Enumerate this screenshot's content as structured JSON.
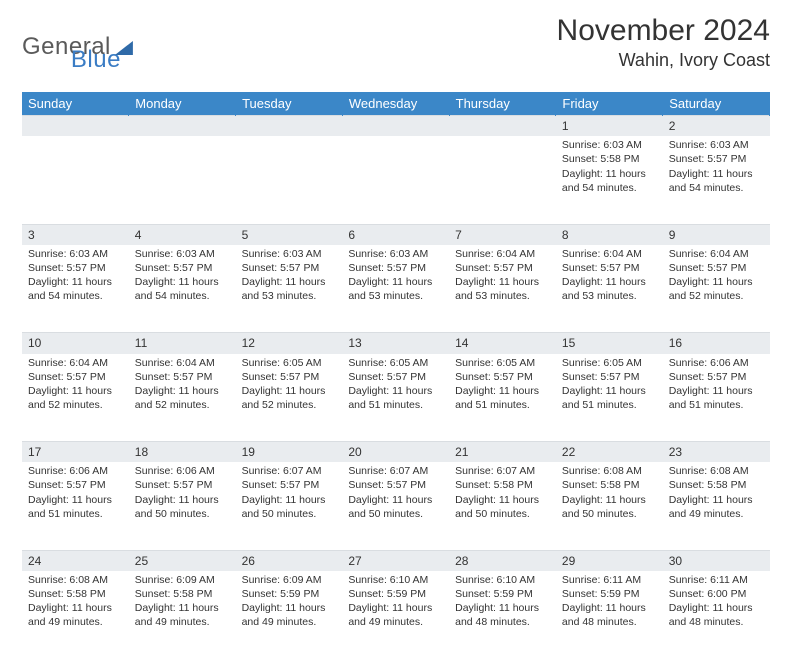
{
  "logo": {
    "part1": "General",
    "part2": "Blue"
  },
  "title": "November 2024",
  "location": "Wahin, Ivory Coast",
  "colors": {
    "header_bg": "#3b87c8",
    "header_text": "#ffffff",
    "daynum_bg": "#e9ecef",
    "text": "#333333",
    "logo_blue": "#3a7cc4",
    "logo_gray": "#5a5a5a"
  },
  "day_headers": [
    "Sunday",
    "Monday",
    "Tuesday",
    "Wednesday",
    "Thursday",
    "Friday",
    "Saturday"
  ],
  "weeks": [
    [
      {
        "n": "",
        "sr": "",
        "ss": "",
        "dl": ""
      },
      {
        "n": "",
        "sr": "",
        "ss": "",
        "dl": ""
      },
      {
        "n": "",
        "sr": "",
        "ss": "",
        "dl": ""
      },
      {
        "n": "",
        "sr": "",
        "ss": "",
        "dl": ""
      },
      {
        "n": "",
        "sr": "",
        "ss": "",
        "dl": ""
      },
      {
        "n": "1",
        "sr": "Sunrise: 6:03 AM",
        "ss": "Sunset: 5:58 PM",
        "dl": "Daylight: 11 hours and 54 minutes."
      },
      {
        "n": "2",
        "sr": "Sunrise: 6:03 AM",
        "ss": "Sunset: 5:57 PM",
        "dl": "Daylight: 11 hours and 54 minutes."
      }
    ],
    [
      {
        "n": "3",
        "sr": "Sunrise: 6:03 AM",
        "ss": "Sunset: 5:57 PM",
        "dl": "Daylight: 11 hours and 54 minutes."
      },
      {
        "n": "4",
        "sr": "Sunrise: 6:03 AM",
        "ss": "Sunset: 5:57 PM",
        "dl": "Daylight: 11 hours and 54 minutes."
      },
      {
        "n": "5",
        "sr": "Sunrise: 6:03 AM",
        "ss": "Sunset: 5:57 PM",
        "dl": "Daylight: 11 hours and 53 minutes."
      },
      {
        "n": "6",
        "sr": "Sunrise: 6:03 AM",
        "ss": "Sunset: 5:57 PM",
        "dl": "Daylight: 11 hours and 53 minutes."
      },
      {
        "n": "7",
        "sr": "Sunrise: 6:04 AM",
        "ss": "Sunset: 5:57 PM",
        "dl": "Daylight: 11 hours and 53 minutes."
      },
      {
        "n": "8",
        "sr": "Sunrise: 6:04 AM",
        "ss": "Sunset: 5:57 PM",
        "dl": "Daylight: 11 hours and 53 minutes."
      },
      {
        "n": "9",
        "sr": "Sunrise: 6:04 AM",
        "ss": "Sunset: 5:57 PM",
        "dl": "Daylight: 11 hours and 52 minutes."
      }
    ],
    [
      {
        "n": "10",
        "sr": "Sunrise: 6:04 AM",
        "ss": "Sunset: 5:57 PM",
        "dl": "Daylight: 11 hours and 52 minutes."
      },
      {
        "n": "11",
        "sr": "Sunrise: 6:04 AM",
        "ss": "Sunset: 5:57 PM",
        "dl": "Daylight: 11 hours and 52 minutes."
      },
      {
        "n": "12",
        "sr": "Sunrise: 6:05 AM",
        "ss": "Sunset: 5:57 PM",
        "dl": "Daylight: 11 hours and 52 minutes."
      },
      {
        "n": "13",
        "sr": "Sunrise: 6:05 AM",
        "ss": "Sunset: 5:57 PM",
        "dl": "Daylight: 11 hours and 51 minutes."
      },
      {
        "n": "14",
        "sr": "Sunrise: 6:05 AM",
        "ss": "Sunset: 5:57 PM",
        "dl": "Daylight: 11 hours and 51 minutes."
      },
      {
        "n": "15",
        "sr": "Sunrise: 6:05 AM",
        "ss": "Sunset: 5:57 PM",
        "dl": "Daylight: 11 hours and 51 minutes."
      },
      {
        "n": "16",
        "sr": "Sunrise: 6:06 AM",
        "ss": "Sunset: 5:57 PM",
        "dl": "Daylight: 11 hours and 51 minutes."
      }
    ],
    [
      {
        "n": "17",
        "sr": "Sunrise: 6:06 AM",
        "ss": "Sunset: 5:57 PM",
        "dl": "Daylight: 11 hours and 51 minutes."
      },
      {
        "n": "18",
        "sr": "Sunrise: 6:06 AM",
        "ss": "Sunset: 5:57 PM",
        "dl": "Daylight: 11 hours and 50 minutes."
      },
      {
        "n": "19",
        "sr": "Sunrise: 6:07 AM",
        "ss": "Sunset: 5:57 PM",
        "dl": "Daylight: 11 hours and 50 minutes."
      },
      {
        "n": "20",
        "sr": "Sunrise: 6:07 AM",
        "ss": "Sunset: 5:57 PM",
        "dl": "Daylight: 11 hours and 50 minutes."
      },
      {
        "n": "21",
        "sr": "Sunrise: 6:07 AM",
        "ss": "Sunset: 5:58 PM",
        "dl": "Daylight: 11 hours and 50 minutes."
      },
      {
        "n": "22",
        "sr": "Sunrise: 6:08 AM",
        "ss": "Sunset: 5:58 PM",
        "dl": "Daylight: 11 hours and 50 minutes."
      },
      {
        "n": "23",
        "sr": "Sunrise: 6:08 AM",
        "ss": "Sunset: 5:58 PM",
        "dl": "Daylight: 11 hours and 49 minutes."
      }
    ],
    [
      {
        "n": "24",
        "sr": "Sunrise: 6:08 AM",
        "ss": "Sunset: 5:58 PM",
        "dl": "Daylight: 11 hours and 49 minutes."
      },
      {
        "n": "25",
        "sr": "Sunrise: 6:09 AM",
        "ss": "Sunset: 5:58 PM",
        "dl": "Daylight: 11 hours and 49 minutes."
      },
      {
        "n": "26",
        "sr": "Sunrise: 6:09 AM",
        "ss": "Sunset: 5:59 PM",
        "dl": "Daylight: 11 hours and 49 minutes."
      },
      {
        "n": "27",
        "sr": "Sunrise: 6:10 AM",
        "ss": "Sunset: 5:59 PM",
        "dl": "Daylight: 11 hours and 49 minutes."
      },
      {
        "n": "28",
        "sr": "Sunrise: 6:10 AM",
        "ss": "Sunset: 5:59 PM",
        "dl": "Daylight: 11 hours and 48 minutes."
      },
      {
        "n": "29",
        "sr": "Sunrise: 6:11 AM",
        "ss": "Sunset: 5:59 PM",
        "dl": "Daylight: 11 hours and 48 minutes."
      },
      {
        "n": "30",
        "sr": "Sunrise: 6:11 AM",
        "ss": "Sunset: 6:00 PM",
        "dl": "Daylight: 11 hours and 48 minutes."
      }
    ]
  ]
}
